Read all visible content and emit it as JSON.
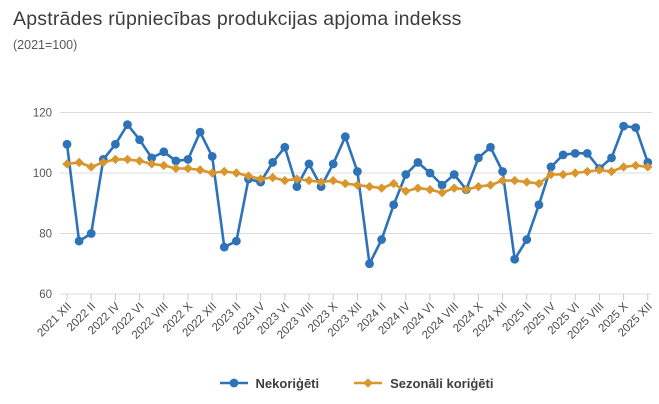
{
  "header": {
    "title": "Apstrādes rūpniecības produkcijas apjoma indekss",
    "subtitle": "(2021=100)"
  },
  "chart_data": {
    "type": "line",
    "title": "Apstrādes rūpniecības produkcijas apjoma indekss",
    "subtitle": "(2021=100)",
    "ylim": [
      60,
      126
    ],
    "yticks": [
      60,
      80,
      100,
      120
    ],
    "grid": true,
    "legend_position": "bottom",
    "x_tick_labels": [
      "2021 XII",
      "2022 II",
      "2022 IV",
      "2022 VI",
      "2022 VIII",
      "2022 X",
      "2022 XII",
      "2023 II",
      "2023 IV",
      "2023 VI",
      "2023 VIII",
      "2023 X",
      "2023 XII",
      "2024 II",
      "2024 IV",
      "2024 VI",
      "2024 VIII",
      "2024 X",
      "2024 XII",
      "2025 II",
      "2025 IV",
      "2025 VI",
      "2025 VIII",
      "2025 X",
      "2025 XII"
    ],
    "points_per_tick": 2,
    "n_points": 49,
    "series": [
      {
        "name": "Nekoriģēti",
        "color": "#2E73B8",
        "marker": "circle",
        "values": [
          109.5,
          77.5,
          80,
          104.5,
          109.5,
          116,
          111,
          105,
          107,
          104,
          104.5,
          113.5,
          105.5,
          75.5,
          77.5,
          98,
          97,
          103.5,
          108.5,
          95.5,
          103,
          95.5,
          103,
          112,
          100.5,
          70,
          78,
          89.5,
          99.5,
          103.5,
          100,
          96,
          99.5,
          94.5,
          105,
          108.5,
          100.5,
          71.5,
          78,
          89.5,
          102,
          106,
          106.5,
          106.5,
          101.5,
          105,
          115.5,
          115,
          103.5
        ]
      },
      {
        "name": "Sezonāli koriģēti",
        "color": "#D8962C",
        "marker": "diamond",
        "values": [
          103,
          103.5,
          102,
          103.5,
          104.5,
          104.5,
          104,
          103,
          102.5,
          101.5,
          101.5,
          101,
          100,
          100.5,
          100,
          99,
          98,
          98.5,
          97.5,
          98,
          97.5,
          97,
          97.5,
          96.5,
          96,
          95.5,
          95,
          96.5,
          94,
          95,
          94.5,
          93.5,
          95,
          94.5,
          95.5,
          96,
          97.5,
          97.5,
          97,
          96.5,
          99.5,
          99.5,
          100,
          100.5,
          101,
          100.5,
          102,
          102.5,
          102
        ]
      }
    ]
  }
}
